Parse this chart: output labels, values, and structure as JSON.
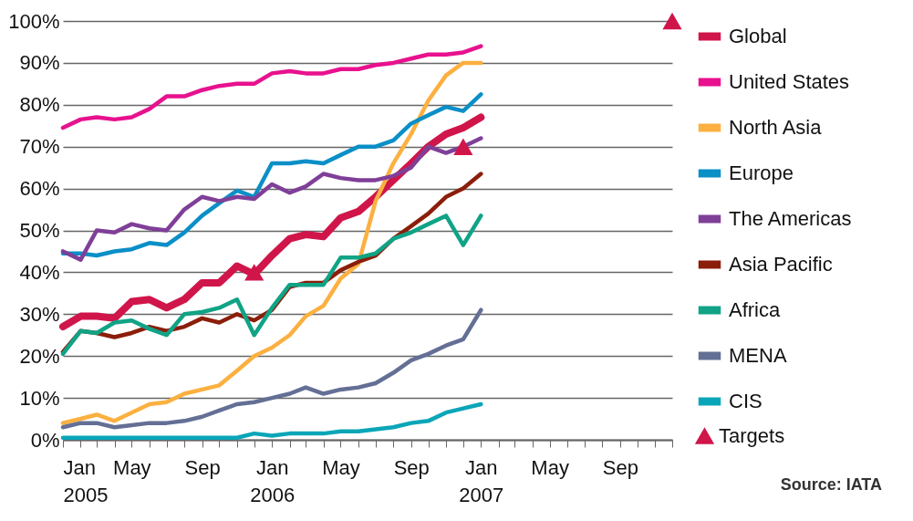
{
  "chart_data": {
    "type": "line",
    "annotations": [
      "Source: IATA"
    ],
    "x": [
      "2005-01",
      "2005-02",
      "2005-03",
      "2005-04",
      "2005-05",
      "2005-06",
      "2005-07",
      "2005-08",
      "2005-09",
      "2005-10",
      "2005-11",
      "2005-12",
      "2006-01",
      "2006-02",
      "2006-03",
      "2006-04",
      "2006-05",
      "2006-06",
      "2006-07",
      "2006-08",
      "2006-09",
      "2006-10",
      "2006-11",
      "2006-12",
      "2007-01"
    ],
    "series": [
      {
        "name": "Global",
        "color": "#d0154a",
        "values": [
          27,
          29.5,
          29.5,
          29,
          33,
          33.5,
          31.5,
          33.5,
          37.5,
          37.5,
          41.5,
          39.5,
          44,
          48,
          49,
          48.5,
          53,
          54.5,
          58,
          62,
          66,
          70,
          73,
          74.5,
          77
        ]
      },
      {
        "name": "United States",
        "color": "#e8118e",
        "values": [
          74.5,
          76.5,
          77,
          76.5,
          77,
          79,
          82,
          82,
          83.5,
          84.5,
          85,
          85,
          87.5,
          88,
          87.5,
          87.5,
          88.5,
          88.5,
          89.5,
          90,
          91,
          92,
          92,
          92.5,
          94
        ]
      },
      {
        "name": "North Asia",
        "color": "#fbb040",
        "values": [
          4,
          5,
          6,
          4.5,
          6.5,
          8.5,
          9,
          11,
          12,
          13,
          16.5,
          20,
          22,
          25,
          29.5,
          32,
          38.5,
          42,
          57,
          66,
          73,
          81,
          87,
          90,
          90
        ]
      },
      {
        "name": "Europe",
        "color": "#0a8fc7",
        "values": [
          44.5,
          44.5,
          44,
          45,
          45.5,
          47,
          46.5,
          49.5,
          53.5,
          56.5,
          59.5,
          58,
          66,
          66,
          66.5,
          66,
          68,
          70,
          70,
          71.5,
          75.5,
          77.5,
          79.5,
          78.5,
          82.5
        ]
      },
      {
        "name": "The Americas",
        "color": "#7f3f98",
        "values": [
          45,
          43,
          50,
          49.5,
          51.5,
          50.5,
          50,
          55,
          58,
          57,
          58,
          57.5,
          61,
          59,
          60.5,
          63.5,
          62.5,
          62,
          62,
          63,
          65,
          70,
          68.5,
          70,
          72
        ]
      },
      {
        "name": "Asia Pacific",
        "color": "#8b1e0a",
        "values": [
          21,
          26,
          25.5,
          24.5,
          25.5,
          27,
          26,
          27,
          29,
          28,
          30,
          28.5,
          31,
          36.5,
          37.5,
          37.5,
          40.5,
          42.5,
          44,
          48,
          51,
          54,
          58,
          60,
          63.5
        ]
      },
      {
        "name": "Africa",
        "color": "#10a386",
        "values": [
          20.5,
          26,
          25.5,
          28,
          28.5,
          26.5,
          25,
          30,
          30.5,
          31.5,
          33.5,
          25,
          31.5,
          37,
          37,
          37,
          43.5,
          43.5,
          44.5,
          48,
          49.5,
          51.5,
          53.5,
          46.5,
          53.5
        ]
      },
      {
        "name": "MENA",
        "color": "#646f95",
        "values": [
          3,
          4,
          4,
          3,
          3.5,
          4,
          4,
          4.5,
          5.5,
          7,
          8.5,
          9,
          10,
          11,
          12.5,
          11,
          12,
          12.5,
          13.5,
          16,
          19,
          20.5,
          22.5,
          24,
          31
        ]
      },
      {
        "name": "CIS",
        "color": "#0aa6b8",
        "values": [
          0.5,
          0.5,
          0.5,
          0.5,
          0.5,
          0.5,
          0.5,
          0.5,
          0.5,
          0.5,
          0.5,
          1.5,
          1,
          1.5,
          1.5,
          1.5,
          2,
          2,
          2.5,
          3,
          4,
          4.5,
          6.5,
          7.5,
          8.5
        ]
      },
      {
        "name": "Targets",
        "type": "scatter",
        "marker": "triangle",
        "color": "#d0154a",
        "x": [
          "2005-12",
          "2006-12",
          "2007-12"
        ],
        "values": [
          40,
          70,
          100
        ]
      }
    ],
    "xlim": [
      "2005-01",
      "2007-12"
    ],
    "xticks": [
      {
        "value": "2005-01",
        "label": "Jan\n2005"
      },
      {
        "value": "2005-02",
        "label": null
      },
      {
        "value": "2005-03",
        "label": null
      },
      {
        "value": "2005-04",
        "label": null
      },
      {
        "value": "2005-05",
        "label": "May"
      },
      {
        "value": "2005-06",
        "label": null
      },
      {
        "value": "2005-07",
        "label": null
      },
      {
        "value": "2005-08",
        "label": null
      },
      {
        "value": "2005-09",
        "label": "Sep"
      },
      {
        "value": "2005-10",
        "label": null
      },
      {
        "value": "2005-11",
        "label": null
      },
      {
        "value": "2005-12",
        "label": null
      },
      {
        "value": "2006-01",
        "label": "Jan\n2006"
      },
      {
        "value": "2006-02",
        "label": null
      },
      {
        "value": "2006-03",
        "label": null
      },
      {
        "value": "2006-04",
        "label": null
      },
      {
        "value": "2006-05",
        "label": "May"
      },
      {
        "value": "2006-06",
        "label": null
      },
      {
        "value": "2006-07",
        "label": null
      },
      {
        "value": "2006-08",
        "label": null
      },
      {
        "value": "2006-09",
        "label": "Sep"
      },
      {
        "value": "2006-10",
        "label": null
      },
      {
        "value": "2006-11",
        "label": null
      },
      {
        "value": "2006-12",
        "label": null
      },
      {
        "value": "2007-01",
        "label": "Jan\n2007"
      },
      {
        "value": "2007-02",
        "label": null
      },
      {
        "value": "2007-03",
        "label": null
      },
      {
        "value": "2007-04",
        "label": null
      },
      {
        "value": "2007-05",
        "label": "May"
      },
      {
        "value": "2007-06",
        "label": null
      },
      {
        "value": "2007-07",
        "label": null
      },
      {
        "value": "2007-08",
        "label": null
      },
      {
        "value": "2007-09",
        "label": "Sep"
      },
      {
        "value": "2007-10",
        "label": null
      },
      {
        "value": "2007-11",
        "label": null
      },
      {
        "value": "2007-12",
        "label": null
      }
    ],
    "ylim": [
      0,
      100
    ],
    "yticks": [
      {
        "value": 0,
        "label": "0%"
      },
      {
        "value": 10,
        "label": "10%"
      },
      {
        "value": 20,
        "label": "20%"
      },
      {
        "value": 30,
        "label": "30%"
      },
      {
        "value": 40,
        "label": "40%"
      },
      {
        "value": 50,
        "label": "50%"
      },
      {
        "value": 60,
        "label": "60%"
      },
      {
        "value": 70,
        "label": "70%"
      },
      {
        "value": 80,
        "label": "80%"
      },
      {
        "value": 90,
        "label": "90%"
      },
      {
        "value": 100,
        "label": "100%"
      }
    ],
    "grid": "y",
    "legend": "right",
    "line_style": "solid"
  }
}
